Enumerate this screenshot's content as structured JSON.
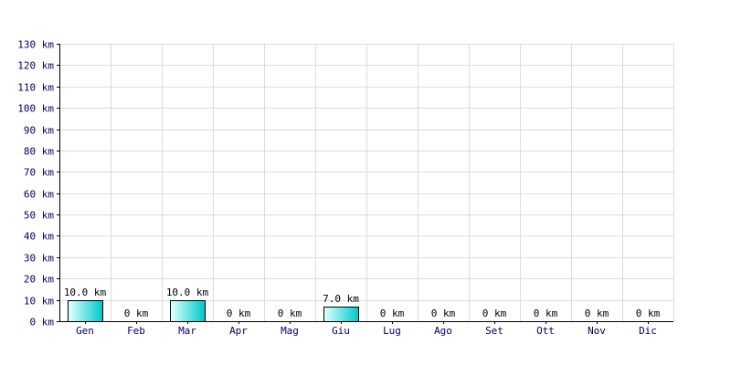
{
  "chart_data": {
    "type": "bar",
    "categories": [
      "Gen",
      "Feb",
      "Mar",
      "Apr",
      "Mag",
      "Giu",
      "Lug",
      "Ago",
      "Set",
      "Ott",
      "Nov",
      "Dic"
    ],
    "values": [
      10.0,
      0,
      10.0,
      0,
      0,
      7.0,
      0,
      0,
      0,
      0,
      0,
      0
    ],
    "data_labels": [
      "10.0 km",
      "0 km",
      "10.0 km",
      "0 km",
      "0 km",
      "7.0 km",
      "0 km",
      "0 km",
      "0 km",
      "0 km",
      "0 km",
      "0 km"
    ],
    "y_tick_labels": [
      "0 km",
      "10 km",
      "20 km",
      "30 km",
      "40 km",
      "50 km",
      "60 km",
      "70 km",
      "80 km",
      "90 km",
      "100 km",
      "110 km",
      "120 km",
      "130 km"
    ],
    "ylim": [
      0,
      130
    ],
    "y_step": 10,
    "grid": true,
    "title": "",
    "xlabel": "",
    "ylabel": ""
  },
  "colors": {
    "bar_light": "#e6ffff",
    "bar_dark": "#00c8c8",
    "bar_border": "#000000",
    "grid": "#dcdcdc",
    "axis": "#000000",
    "tick_text": "#000060"
  }
}
